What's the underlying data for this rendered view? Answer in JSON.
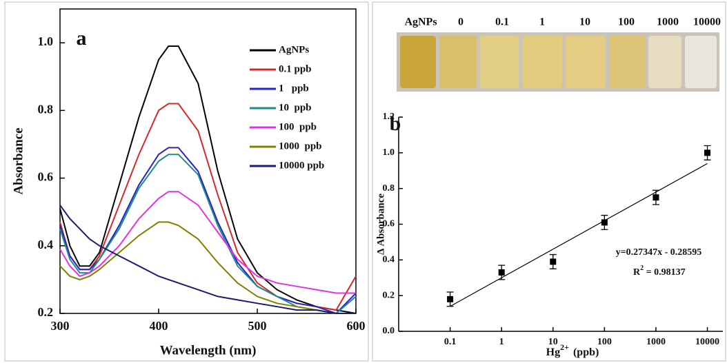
{
  "photo": {
    "labels": [
      "AgNPs",
      "0",
      "0.1",
      "1",
      "10",
      "100",
      "1000",
      "10000"
    ]
  },
  "chart_data": [
    {
      "type": "line",
      "panel_label": "a",
      "x_label": "Wavelength (nm)",
      "y_label": "Absorbance",
      "x": [
        300,
        310,
        320,
        330,
        340,
        360,
        380,
        400,
        410,
        420,
        440,
        460,
        480,
        500,
        520,
        540,
        560,
        580,
        600
      ],
      "xlim": [
        300,
        600
      ],
      "ylim": [
        0.2,
        1.1
      ],
      "xticks": [
        300,
        400,
        500,
        600
      ],
      "yticks": [
        0.2,
        0.4,
        0.6,
        0.8,
        {
          "value": 1,
          "label": "1.0"
        }
      ],
      "series": [
        {
          "name": "AgNPs",
          "color": "#000000",
          "values": [
            0.51,
            0.4,
            0.34,
            0.34,
            0.38,
            0.58,
            0.78,
            0.95,
            0.99,
            0.99,
            0.88,
            0.62,
            0.42,
            0.32,
            0.27,
            0.24,
            0.22,
            0.21,
            0.2
          ]
        },
        {
          "name": "0.1 ppb",
          "color": "#d62728",
          "values": [
            0.47,
            0.37,
            0.33,
            0.33,
            0.37,
            0.52,
            0.67,
            0.8,
            0.82,
            0.82,
            0.74,
            0.55,
            0.38,
            0.29,
            0.25,
            0.23,
            0.22,
            0.21,
            0.31
          ]
        },
        {
          "name": "1   ppb",
          "color": "#2323c8",
          "values": [
            0.46,
            0.37,
            0.33,
            0.33,
            0.36,
            0.46,
            0.58,
            0.67,
            0.69,
            0.69,
            0.62,
            0.47,
            0.35,
            0.28,
            0.25,
            0.23,
            0.22,
            0.2,
            0.26
          ]
        },
        {
          "name": "10  ppb",
          "color": "#1f8a8a",
          "values": [
            0.45,
            0.36,
            0.32,
            0.32,
            0.36,
            0.45,
            0.57,
            0.65,
            0.67,
            0.67,
            0.61,
            0.46,
            0.34,
            0.28,
            0.25,
            0.22,
            0.21,
            0.2,
            0.25
          ]
        },
        {
          "name": "100  ppb",
          "color": "#e033e0",
          "values": [
            0.39,
            0.34,
            0.31,
            0.32,
            0.34,
            0.4,
            0.48,
            0.54,
            0.56,
            0.56,
            0.52,
            0.44,
            0.36,
            0.31,
            0.29,
            0.28,
            0.27,
            0.26,
            0.26
          ]
        },
        {
          "name": "1000  ppb",
          "color": "#808000",
          "values": [
            0.34,
            0.31,
            0.3,
            0.31,
            0.33,
            0.38,
            0.43,
            0.47,
            0.47,
            0.46,
            0.42,
            0.35,
            0.29,
            0.25,
            0.23,
            0.22,
            0.21,
            0.2,
            0.2
          ]
        },
        {
          "name": "10000 ppb",
          "color": "#1a1a6e",
          "values": [
            0.52,
            0.48,
            0.45,
            0.42,
            0.4,
            0.37,
            0.34,
            0.31,
            0.3,
            0.29,
            0.27,
            0.25,
            0.24,
            0.23,
            0.22,
            0.21,
            0.21,
            0.2,
            0.2
          ]
        }
      ]
    },
    {
      "type": "scatter",
      "panel_label": "b",
      "log_x": true,
      "x_label": {
        "base": "Hg",
        "sup": "2+",
        "unit": "(ppb)"
      },
      "y_label": "Δ Absorbance",
      "x": [
        0.1,
        1,
        10,
        100,
        1000,
        10000
      ],
      "values": [
        0.18,
        0.33,
        0.39,
        0.61,
        0.75,
        1.0
      ],
      "errors": [
        0.04,
        0.04,
        0.04,
        0.04,
        0.04,
        0.04
      ],
      "color": "#000000",
      "fit": {
        "x": [
          0.1,
          10000
        ],
        "values": [
          0.14,
          0.94
        ]
      },
      "equation": "y=0.27347x - 0.28595",
      "r2": {
        "base": "R",
        "sup": "2",
        "text": " = 0.98137"
      },
      "xlim": [
        0.01,
        20000
      ],
      "ylim": [
        0,
        1.2
      ],
      "xticks": [
        0.1,
        1,
        10,
        100,
        1000,
        10000
      ],
      "yticks": [
        {
          "value": 0,
          "label": "0.0"
        },
        0.2,
        0.4,
        0.6,
        0.8,
        {
          "value": 1,
          "label": "1.0"
        },
        1.2
      ]
    }
  ]
}
